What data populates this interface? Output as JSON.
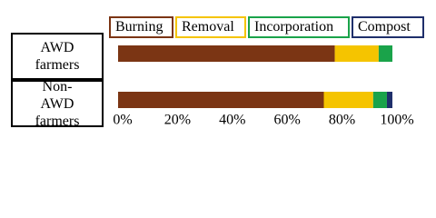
{
  "chart_data": {
    "type": "stacked-bar-horizontal",
    "categories": [
      "AWD farmers",
      "Non-AWD farmers"
    ],
    "series": [
      {
        "name": "Burning",
        "color": "#7b3514",
        "values": [
          79,
          75
        ]
      },
      {
        "name": "Removal",
        "color": "#f5c400",
        "values": [
          16,
          18
        ]
      },
      {
        "name": "Incorporation",
        "color": "#1aa34a",
        "values": [
          5,
          5
        ]
      },
      {
        "name": "Compost",
        "color": "#1f2f6b",
        "values": [
          0,
          2
        ]
      }
    ],
    "xlim": [
      0,
      100
    ],
    "xticks": [
      {
        "value": 0,
        "label": "0%"
      },
      {
        "value": 20,
        "label": "20%"
      },
      {
        "value": 40,
        "label": "40%"
      },
      {
        "value": 60,
        "label": "60%"
      },
      {
        "value": 80,
        "label": "80%"
      },
      {
        "value": 100,
        "label": "100%"
      }
    ]
  }
}
